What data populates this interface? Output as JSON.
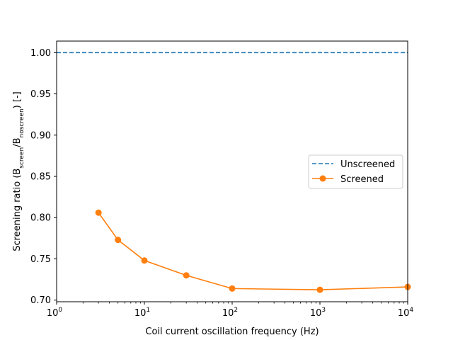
{
  "chart_data": {
    "type": "line",
    "x_scale": "log",
    "xlim": [
      1,
      10000
    ],
    "ylim": [
      0.698,
      1.014
    ],
    "xlabel": "Coil current oscillation frequency (Hz)",
    "ylabel": {
      "prefix": "Screening ratio (B",
      "sub1": "screen",
      "mid": "/B",
      "sub2": "noscreen",
      "suffix": ") [-]"
    },
    "x_ticks": [
      {
        "value": 1,
        "base": "10",
        "exp": "0"
      },
      {
        "value": 10,
        "base": "10",
        "exp": "1"
      },
      {
        "value": 100,
        "base": "10",
        "exp": "2"
      },
      {
        "value": 1000,
        "base": "10",
        "exp": "3"
      },
      {
        "value": 10000,
        "base": "10",
        "exp": "4"
      }
    ],
    "y_ticks": [
      {
        "value": 0.7,
        "label": "0.70"
      },
      {
        "value": 0.75,
        "label": "0.75"
      },
      {
        "value": 0.8,
        "label": "0.80"
      },
      {
        "value": 0.85,
        "label": "0.85"
      },
      {
        "value": 0.9,
        "label": "0.90"
      },
      {
        "value": 0.95,
        "label": "0.95"
      },
      {
        "value": 1.0,
        "label": "1.00"
      }
    ],
    "series": [
      {
        "name": "Unscreened",
        "style": "dashed",
        "color": "#1f77b4",
        "x": [
          1,
          10000
        ],
        "y": [
          1.0,
          1.0
        ]
      },
      {
        "name": "Screened",
        "style": "solid-marker",
        "color": "#ff7f0e",
        "x": [
          3,
          5,
          10,
          30,
          100,
          1000,
          10000
        ],
        "y": [
          0.806,
          0.773,
          0.748,
          0.73,
          0.714,
          0.7125,
          0.716
        ]
      }
    ],
    "legend": {
      "placement": "center-right",
      "entries": [
        "Unscreened",
        "Screened"
      ]
    }
  }
}
